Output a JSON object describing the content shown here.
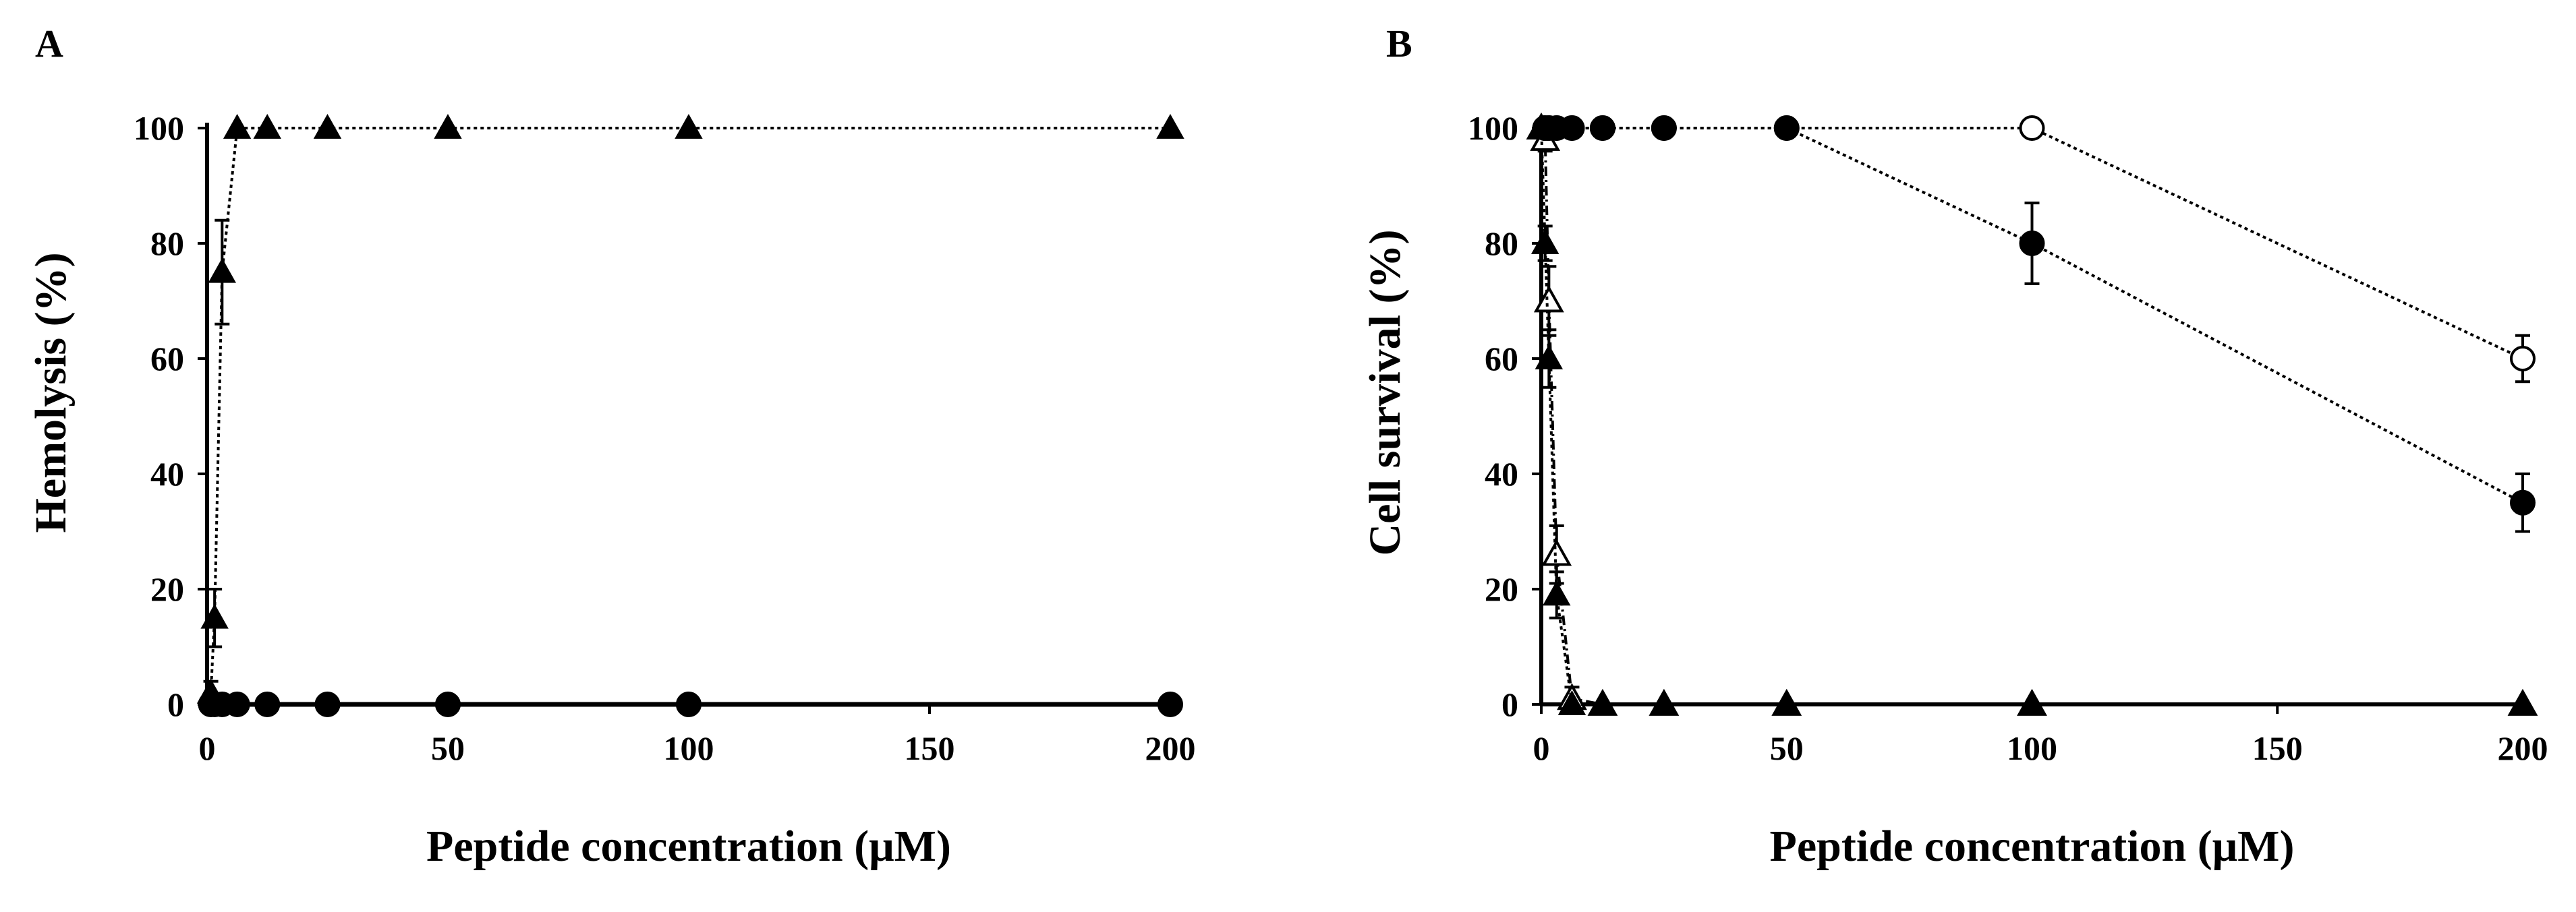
{
  "chart_data": [
    {
      "panel": "A",
      "type": "scatter",
      "xlabel": "Peptide concentration (μM)",
      "ylabel": "Hemolysis (%)",
      "xlim": [
        0,
        200
      ],
      "ylim": [
        0,
        100
      ],
      "xticks": [
        0,
        50,
        100,
        150,
        200
      ],
      "yticks": [
        0,
        20,
        40,
        60,
        80,
        100
      ],
      "grid": false,
      "legend": "none",
      "series": [
        {
          "marker": "filled-triangle",
          "line": "dotted",
          "x": [
            0.78,
            1.56,
            3.125,
            6.25,
            12.5,
            25,
            50,
            100,
            200
          ],
          "y": [
            2,
            15,
            75,
            100,
            100,
            100,
            100,
            100,
            100
          ],
          "err": [
            2,
            5,
            9,
            0,
            0,
            0,
            0,
            0,
            0
          ]
        },
        {
          "marker": "filled-circle",
          "line": "solid",
          "x": [
            0.78,
            1.56,
            3.125,
            6.25,
            12.5,
            25,
            50,
            100,
            200
          ],
          "y": [
            0,
            0,
            0,
            0,
            0,
            0,
            0,
            0,
            0
          ],
          "err": [
            0,
            0,
            0,
            0,
            0,
            0,
            0,
            0,
            0
          ]
        }
      ]
    },
    {
      "panel": "B",
      "type": "scatter",
      "xlabel": "Peptide concentration (μM)",
      "ylabel": "Cell survival (%)",
      "xlim": [
        0,
        200
      ],
      "ylim": [
        0,
        100
      ],
      "xticks": [
        0,
        50,
        100,
        150,
        200
      ],
      "yticks": [
        0,
        20,
        40,
        60,
        80,
        100
      ],
      "grid": false,
      "legend": "none",
      "series": [
        {
          "marker": "open-triangle",
          "line": "dash-dot",
          "x": [
            0,
            0.78,
            1.56,
            3.125,
            6.25,
            12.5,
            25,
            50,
            100,
            200
          ],
          "y": [
            100,
            98,
            70,
            26,
            1,
            0,
            0,
            0,
            0,
            0
          ],
          "err": [
            0,
            2,
            6,
            5,
            2,
            0,
            0,
            0,
            0,
            0
          ]
        },
        {
          "marker": "filled-triangle",
          "line": "dotted",
          "x": [
            0,
            0.78,
            1.56,
            3.125,
            6.25,
            12.5,
            25,
            50,
            100,
            200
          ],
          "y": [
            100,
            80,
            60,
            19,
            0,
            0,
            0,
            0,
            0,
            0
          ],
          "err": [
            0,
            3,
            5,
            4,
            0,
            0,
            0,
            0,
            0,
            0
          ]
        },
        {
          "marker": "open-circle",
          "line": "dotted",
          "x": [
            0.78,
            1.56,
            3.125,
            6.25,
            12.5,
            25,
            50,
            100,
            200
          ],
          "y": [
            100,
            100,
            100,
            100,
            100,
            100,
            100,
            100,
            60
          ],
          "err": [
            0,
            0,
            0,
            0,
            0,
            0,
            0,
            0,
            4
          ]
        },
        {
          "marker": "filled-circle",
          "line": "dotted",
          "x": [
            0.78,
            1.56,
            3.125,
            6.25,
            12.5,
            25,
            50,
            100,
            200
          ],
          "y": [
            100,
            100,
            100,
            100,
            100,
            100,
            100,
            80,
            35
          ],
          "err": [
            0,
            0,
            0,
            0,
            0,
            0,
            0,
            7,
            5
          ]
        }
      ]
    }
  ]
}
